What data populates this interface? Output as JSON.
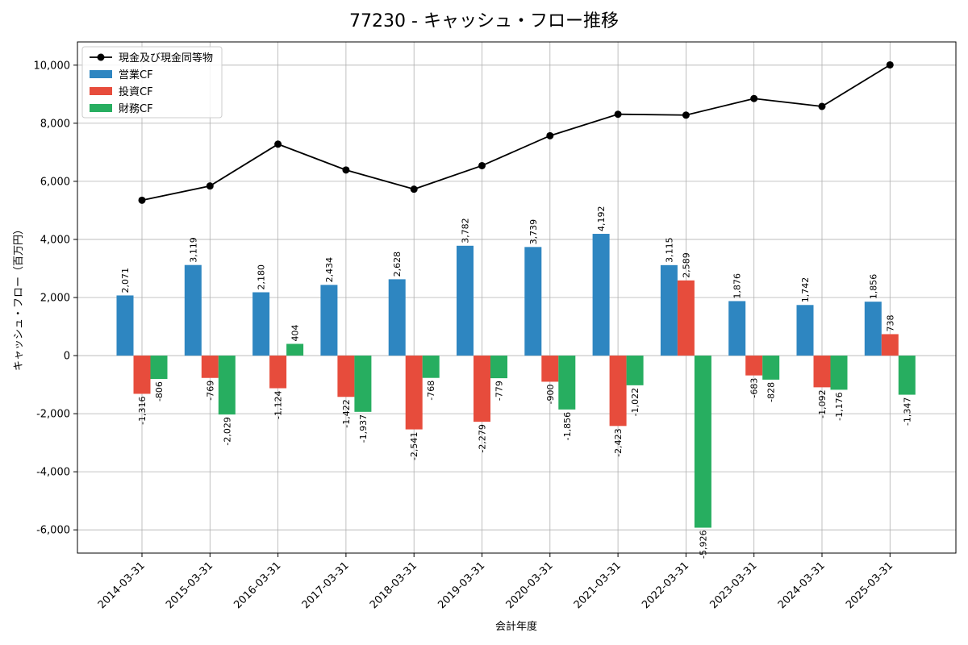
{
  "chart_data": {
    "type": "bar",
    "title": "77230 - キャッシュ・フロー推移",
    "xlabel": "会計年度",
    "ylabel": "キャッシュ・フロー（百万円）",
    "ylim": [
      -6800,
      10800
    ],
    "yticks": [
      -6000,
      -4000,
      -2000,
      0,
      2000,
      4000,
      6000,
      8000,
      10000
    ],
    "ytick_labels": [
      "-6,000",
      "-4,000",
      "-2,000",
      "0",
      "2,000",
      "4,000",
      "6,000",
      "8,000",
      "10,000"
    ],
    "grid": true,
    "legend_position": "top-left",
    "categories": [
      "2014-03-31",
      "2015-03-31",
      "2016-03-31",
      "2017-03-31",
      "2018-03-31",
      "2019-03-31",
      "2020-03-31",
      "2021-03-31",
      "2022-03-31",
      "2023-03-31",
      "2024-03-31",
      "2025-03-31"
    ],
    "series": [
      {
        "name": "営業CF",
        "kind": "bar",
        "color": "#2e86c1",
        "values": [
          2071,
          3119,
          2180,
          2434,
          2628,
          3782,
          3739,
          4192,
          3115,
          1876,
          1742,
          1856
        ],
        "labels": [
          "2,071",
          "3,119",
          "2,180",
          "2,434",
          "2,628",
          "3,782",
          "3,739",
          "4,192",
          "3,115",
          "1,876",
          "1,742",
          "1,856"
        ]
      },
      {
        "name": "投資CF",
        "kind": "bar",
        "color": "#e74c3c",
        "values": [
          -1316,
          -769,
          -1124,
          -1422,
          -2541,
          -2279,
          -900,
          -2423,
          2589,
          -683,
          -1092,
          738
        ],
        "labels": [
          "-1,316",
          "-769",
          "-1,124",
          "-1,422",
          "-2,541",
          "-2,279",
          "-900",
          "-2,423",
          "2,589",
          "-683",
          "-1,092",
          "738"
        ]
      },
      {
        "name": "財務CF",
        "kind": "bar",
        "color": "#27ae60",
        "values": [
          -806,
          -2029,
          404,
          -1937,
          -768,
          -779,
          -1856,
          -1022,
          -5926,
          -828,
          -1176,
          -1347
        ],
        "labels": [
          "-806",
          "-2,029",
          "404",
          "-1,937",
          "-768",
          "-779",
          "-1,856",
          "-1,022",
          "-5,926",
          "-828",
          "-1,176",
          "-1,347"
        ]
      },
      {
        "name": "現金及び現金同等物",
        "kind": "line",
        "color": "#000000",
        "values": [
          5350,
          5840,
          7280,
          6390,
          5730,
          6540,
          7570,
          8310,
          8280,
          8850,
          8580,
          10010
        ]
      }
    ]
  }
}
